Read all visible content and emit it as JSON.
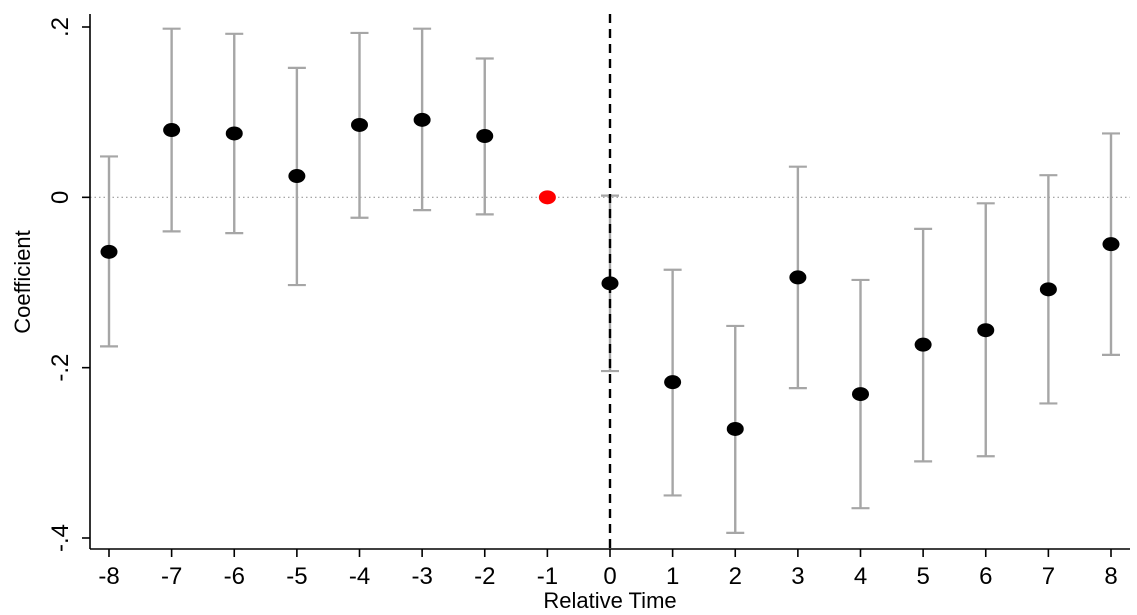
{
  "chart_data": {
    "type": "scatter",
    "title": "",
    "xlabel": "Relative Time",
    "ylabel": "Coefficient",
    "xlim": [
      -8,
      8
    ],
    "ylim": [
      -0.4,
      0.2
    ],
    "x_ticks": [
      "-8",
      "-7",
      "-6",
      "-5",
      "-4",
      "-3",
      "-2",
      "-1",
      "0",
      "1",
      "2",
      "3",
      "4",
      "5",
      "6",
      "7",
      "8"
    ],
    "y_ticks": [
      {
        "value": 0.2,
        "label": ".2"
      },
      {
        "value": 0,
        "label": "0"
      },
      {
        "value": -0.2,
        "label": "-.2"
      },
      {
        "value": -0.4,
        "label": "-.4"
      }
    ],
    "reference_lines": {
      "horizontal_zero": "dotted",
      "vertical_at_x": 0,
      "vertical_style": "dashed"
    },
    "points": [
      {
        "x": -8,
        "y": -0.064,
        "lo": -0.175,
        "hi": 0.048
      },
      {
        "x": -7,
        "y": 0.079,
        "lo": -0.04,
        "hi": 0.198
      },
      {
        "x": -6,
        "y": 0.075,
        "lo": -0.042,
        "hi": 0.192
      },
      {
        "x": -5,
        "y": 0.025,
        "lo": -0.103,
        "hi": 0.152
      },
      {
        "x": -4,
        "y": 0.085,
        "lo": -0.024,
        "hi": 0.193
      },
      {
        "x": -3,
        "y": 0.091,
        "lo": -0.015,
        "hi": 0.198
      },
      {
        "x": -2,
        "y": 0.072,
        "lo": -0.02,
        "hi": 0.163
      },
      {
        "x": -1,
        "y": 0.0,
        "reference": true
      },
      {
        "x": 0,
        "y": -0.101,
        "lo": -0.204,
        "hi": 0.002
      },
      {
        "x": 1,
        "y": -0.217,
        "lo": -0.35,
        "hi": -0.085
      },
      {
        "x": 2,
        "y": -0.272,
        "lo": -0.394,
        "hi": -0.151
      },
      {
        "x": 3,
        "y": -0.094,
        "lo": -0.224,
        "hi": 0.036
      },
      {
        "x": 4,
        "y": -0.231,
        "lo": -0.365,
        "hi": -0.097
      },
      {
        "x": 5,
        "y": -0.173,
        "lo": -0.31,
        "hi": -0.037
      },
      {
        "x": 6,
        "y": -0.156,
        "lo": -0.304,
        "hi": -0.007
      },
      {
        "x": 7,
        "y": -0.108,
        "lo": -0.242,
        "hi": 0.026
      },
      {
        "x": 8,
        "y": -0.055,
        "lo": -0.185,
        "hi": 0.075
      }
    ],
    "colors": {
      "point": "#000000",
      "reference_point": "#ff0000",
      "ci_line": "#a6a6a6",
      "zero_line": "#9a9a9a",
      "axis": "#000000",
      "vertical_line": "#000000"
    },
    "grid": false,
    "legend": "none"
  }
}
